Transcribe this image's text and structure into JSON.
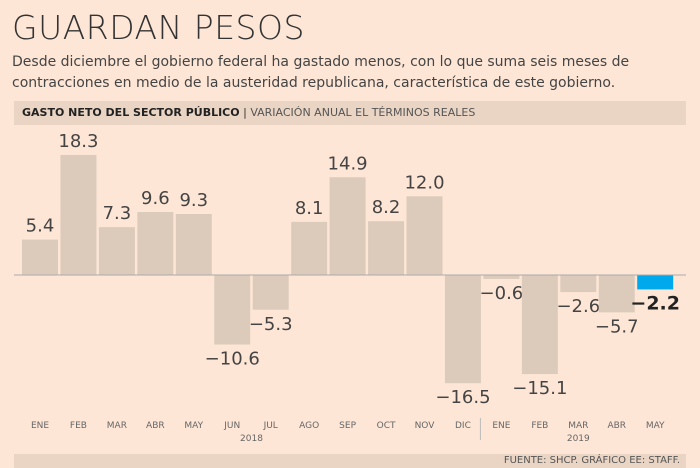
{
  "title": "GUARDAN PESOS",
  "subtitle": "Desde diciembre el gobierno federal ha gastado menos, con lo que suma seis meses de contracciones en medio de la austeridad republicana, característica de este gobierno.",
  "band_title": "GASTO NETO DEL SECTOR PÚBLICO",
  "band_sep": " | ",
  "band_subtitle": "VARIACIÓN ANUAL EL TÉRMINOS REALES",
  "footer": "FUENTE: SHCP. GRÁFICO EE: STAFF.",
  "colors": {
    "bar": "#dccbbb",
    "highlight": "#00a9ec",
    "background": "#fee6d6"
  },
  "chart_data": {
    "type": "bar",
    "title": "GASTO NETO DEL SECTOR PÚBLICO",
    "categories": [
      "ENE",
      "FEB",
      "MAR",
      "ABR",
      "MAY",
      "JUN",
      "JUL",
      "AGO",
      "SEP",
      "OCT",
      "NOV",
      "DIC",
      "ENE",
      "FEB",
      "MAR",
      "ABR",
      "MAY"
    ],
    "values": [
      5.4,
      18.3,
      7.3,
      9.6,
      9.3,
      -10.6,
      -5.3,
      8.1,
      14.9,
      8.2,
      12.0,
      -16.5,
      -0.6,
      -15.1,
      -2.6,
      -5.7,
      -2.2
    ],
    "labels": [
      "5.4",
      "18.3",
      "7.3",
      "9.6",
      "9.3",
      "−10.6",
      "−5.3",
      "8.1",
      "14.9",
      "8.2",
      "12.0",
      "−16.5",
      "−0.6",
      "−15.1",
      "−2.6",
      "−5.7",
      "−2.2"
    ],
    "years": [
      {
        "label": "2018",
        "start": 0,
        "end": 11
      },
      {
        "label": "2019",
        "start": 12,
        "end": 16
      }
    ],
    "highlight_index": 16,
    "ylim": [
      -17,
      19
    ]
  }
}
